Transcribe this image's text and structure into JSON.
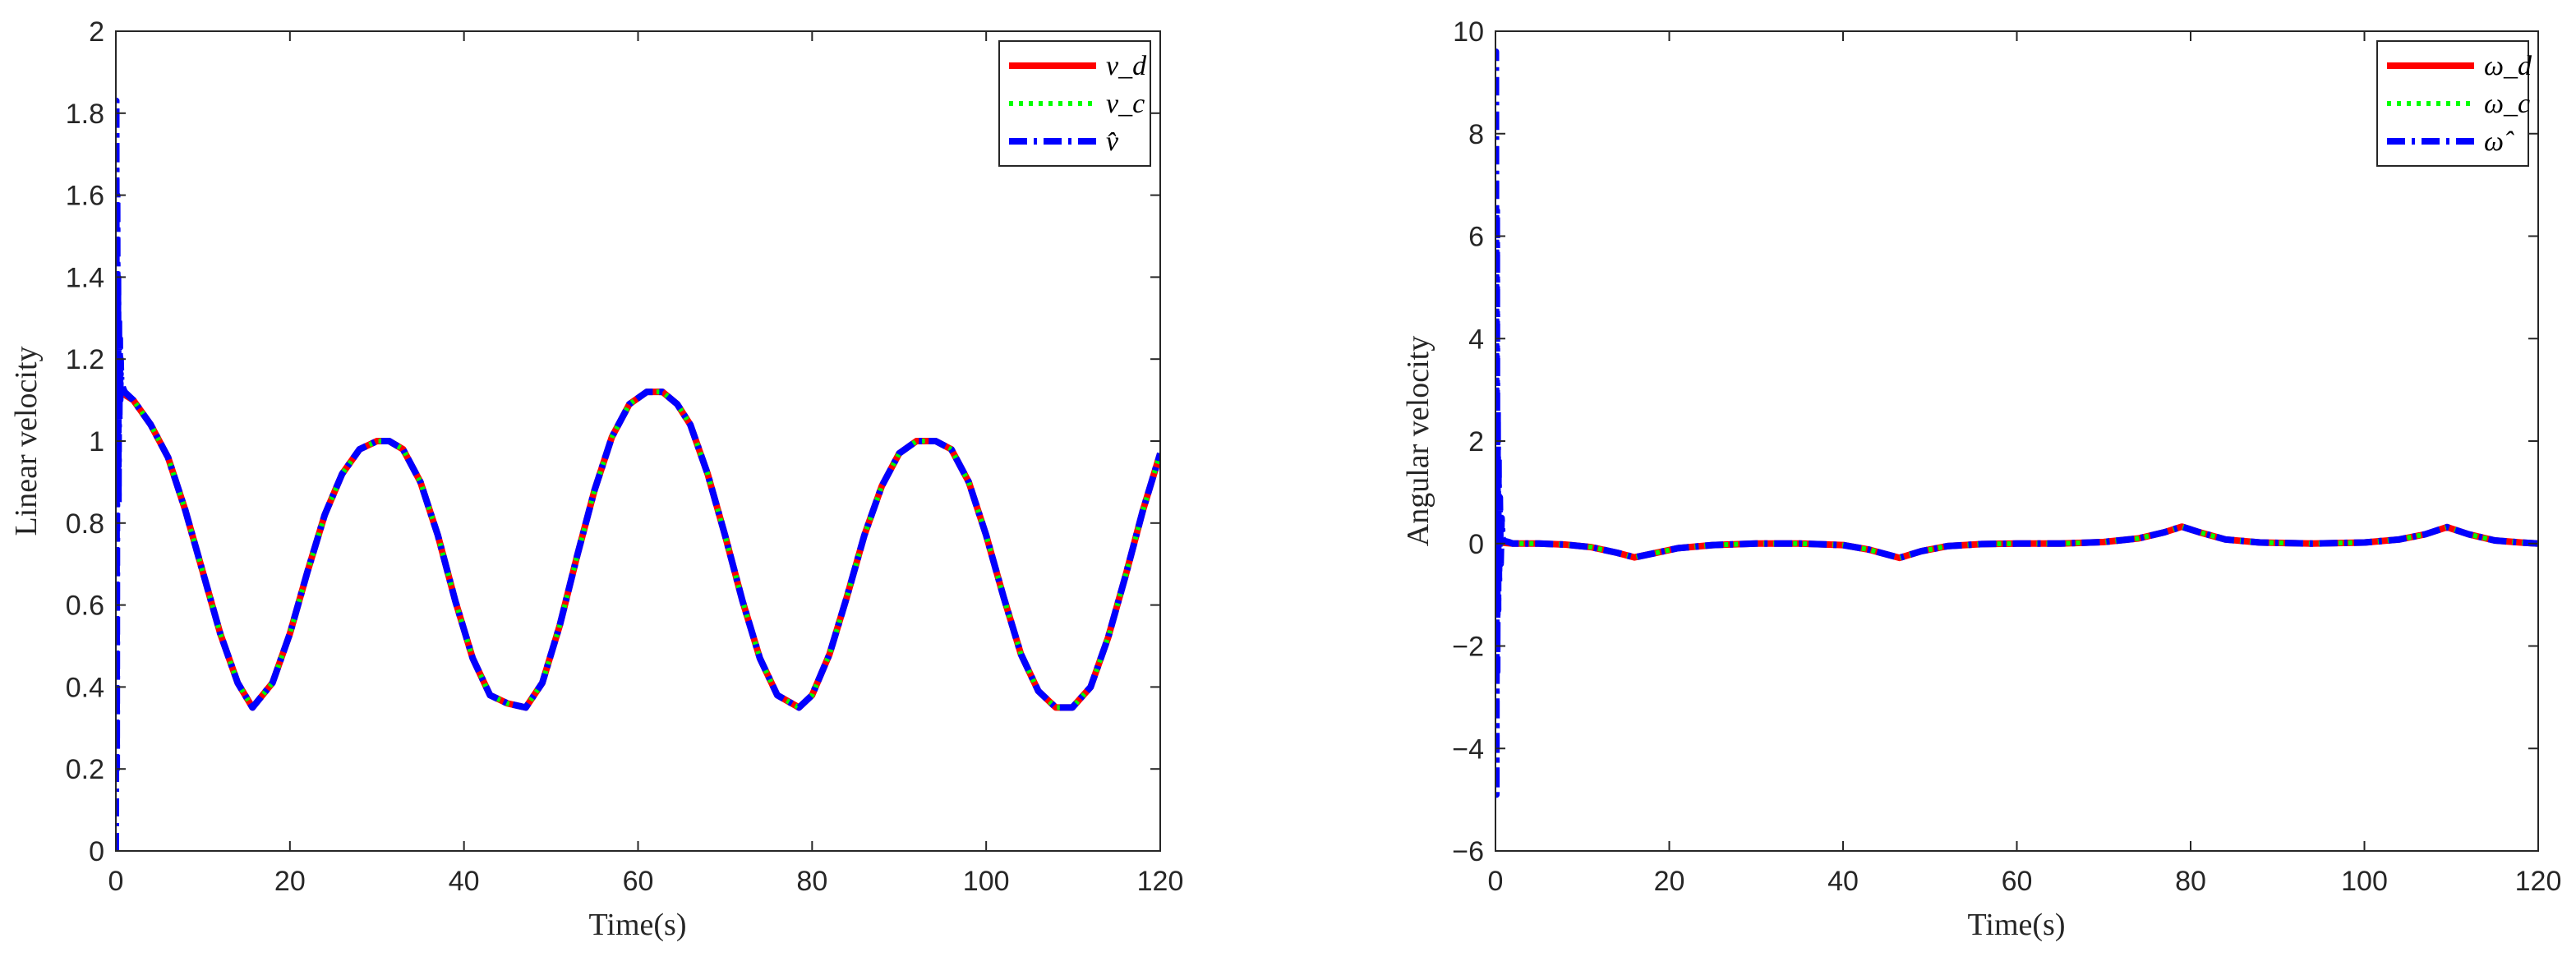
{
  "chart_data": [
    {
      "type": "line",
      "xlabel": "Time(s)",
      "ylabel": "Linear velocity",
      "xlim": [
        0,
        120
      ],
      "ylim": [
        0,
        2
      ],
      "xticks": [
        "0",
        "20",
        "40",
        "60",
        "80",
        "100",
        "120"
      ],
      "yticks": [
        "0",
        "0.2",
        "0.4",
        "0.6",
        "0.8",
        "1",
        "1.2",
        "1.4",
        "1.6",
        "1.8",
        "2"
      ],
      "legend_position": "top-right",
      "grid": false,
      "series": [
        {
          "name": "v_d",
          "color": "#ff0000",
          "style": "solid",
          "x": [
            0.5,
            2,
            4,
            6,
            8,
            10,
            12,
            14,
            15.7,
            18,
            20,
            22,
            24,
            26,
            28,
            30,
            31.4,
            33,
            35,
            37,
            39,
            41,
            43,
            45,
            47.1,
            49,
            51,
            53,
            55,
            57,
            59,
            61,
            62.8,
            64.5,
            66,
            68,
            70,
            72,
            74,
            76,
            78.5,
            80,
            82,
            84,
            86,
            88,
            90,
            92,
            94.2,
            96,
            98,
            100,
            102,
            104,
            106,
            108,
            109.9,
            112,
            114,
            116,
            118,
            120
          ],
          "y": [
            1.12,
            1.1,
            1.04,
            0.96,
            0.83,
            0.68,
            0.53,
            0.41,
            0.35,
            0.41,
            0.53,
            0.68,
            0.82,
            0.92,
            0.98,
            1.0,
            1.0,
            0.98,
            0.9,
            0.77,
            0.61,
            0.47,
            0.38,
            0.36,
            0.35,
            0.41,
            0.55,
            0.72,
            0.88,
            1.01,
            1.09,
            1.12,
            1.12,
            1.09,
            1.04,
            0.92,
            0.77,
            0.61,
            0.47,
            0.38,
            0.35,
            0.38,
            0.48,
            0.62,
            0.77,
            0.89,
            0.97,
            1.0,
            1.0,
            0.98,
            0.9,
            0.77,
            0.62,
            0.48,
            0.39,
            0.35,
            0.35,
            0.4,
            0.52,
            0.67,
            0.83,
            0.97
          ]
        },
        {
          "name": "v_c",
          "color": "#00ff00",
          "style": "dotted",
          "x": [
            0.5,
            2,
            4,
            6,
            8,
            10,
            12,
            14,
            15.7,
            18,
            20,
            22,
            24,
            26,
            28,
            30,
            31.4,
            33,
            35,
            37,
            39,
            41,
            43,
            45,
            47.1,
            49,
            51,
            53,
            55,
            57,
            59,
            61,
            62.8,
            64.5,
            66,
            68,
            70,
            72,
            74,
            76,
            78.5,
            80,
            82,
            84,
            86,
            88,
            90,
            92,
            94.2,
            96,
            98,
            100,
            102,
            104,
            106,
            108,
            109.9,
            112,
            114,
            116,
            118,
            120
          ],
          "y": [
            1.12,
            1.1,
            1.04,
            0.96,
            0.83,
            0.68,
            0.53,
            0.41,
            0.35,
            0.41,
            0.53,
            0.68,
            0.82,
            0.92,
            0.98,
            1.0,
            1.0,
            0.98,
            0.9,
            0.77,
            0.61,
            0.47,
            0.38,
            0.36,
            0.35,
            0.41,
            0.55,
            0.72,
            0.88,
            1.01,
            1.09,
            1.12,
            1.12,
            1.09,
            1.04,
            0.92,
            0.77,
            0.61,
            0.47,
            0.38,
            0.35,
            0.38,
            0.48,
            0.62,
            0.77,
            0.89,
            0.97,
            1.0,
            1.0,
            0.98,
            0.9,
            0.77,
            0.62,
            0.48,
            0.39,
            0.35,
            0.35,
            0.4,
            0.52,
            0.67,
            0.83,
            0.97
          ]
        },
        {
          "name": "v̂",
          "color": "#0000ff",
          "style": "dashdot",
          "x": [
            0,
            0.05,
            0.1,
            0.15,
            0.2,
            0.25,
            0.3,
            0.35,
            0.4,
            0.45,
            0.5,
            0.55,
            0.6,
            0.7,
            0.8,
            1,
            2,
            4,
            6,
            8,
            10,
            12,
            14,
            15.7,
            18,
            20,
            22,
            24,
            26,
            28,
            30,
            31.4,
            33,
            35,
            37,
            39,
            41,
            43,
            45,
            47.1,
            49,
            51,
            53,
            55,
            57,
            59,
            61,
            62.8,
            64.5,
            66,
            68,
            70,
            72,
            74,
            76,
            78.5,
            80,
            82,
            84,
            86,
            88,
            90,
            92,
            94.2,
            96,
            98,
            100,
            102,
            104,
            106,
            108,
            109.9,
            112,
            114,
            116,
            118,
            120
          ],
          "y": [
            0,
            1.83,
            0.2,
            1.6,
            0.9,
            1.4,
            0.85,
            1.3,
            1.05,
            1.25,
            1.1,
            1.2,
            1.15,
            1.14,
            1.13,
            1.12,
            1.1,
            1.04,
            0.96,
            0.83,
            0.68,
            0.53,
            0.41,
            0.35,
            0.41,
            0.53,
            0.68,
            0.82,
            0.92,
            0.98,
            1.0,
            1.0,
            0.98,
            0.9,
            0.77,
            0.61,
            0.47,
            0.38,
            0.36,
            0.35,
            0.41,
            0.55,
            0.72,
            0.88,
            1.01,
            1.09,
            1.12,
            1.12,
            1.09,
            1.04,
            0.92,
            0.77,
            0.61,
            0.47,
            0.38,
            0.35,
            0.38,
            0.48,
            0.62,
            0.77,
            0.89,
            0.97,
            1.0,
            1.0,
            0.98,
            0.9,
            0.77,
            0.62,
            0.48,
            0.39,
            0.35,
            0.35,
            0.4,
            0.52,
            0.67,
            0.83,
            0.97
          ]
        }
      ]
    },
    {
      "type": "line",
      "xlabel": "Time(s)",
      "ylabel": "Angular velocity",
      "xlim": [
        0,
        120
      ],
      "ylim": [
        -6,
        10
      ],
      "xticks": [
        "0",
        "20",
        "40",
        "60",
        "80",
        "100",
        "120"
      ],
      "yticks": [
        "−6",
        "−4",
        "−2",
        "0",
        "2",
        "4",
        "6",
        "8",
        "10"
      ],
      "legend_position": "top-right",
      "grid": false,
      "series": [
        {
          "name": "ω_d",
          "color": "#ff0000",
          "style": "solid",
          "x": [
            0.5,
            2,
            5,
            8,
            11,
            14,
            16,
            18,
            21,
            25,
            30,
            35,
            40,
            43,
            46.5,
            49,
            52,
            56,
            60,
            65,
            70,
            74,
            77,
            79,
            81,
            84,
            88,
            94,
            100,
            104,
            107,
            109.5,
            112,
            115,
            118,
            120
          ],
          "y": [
            0.02,
            0.0,
            0.0,
            -0.02,
            -0.07,
            -0.18,
            -0.27,
            -0.2,
            -0.09,
            -0.03,
            0.0,
            0.0,
            -0.03,
            -0.12,
            -0.28,
            -0.15,
            -0.05,
            -0.01,
            0.0,
            0.0,
            0.03,
            0.1,
            0.22,
            0.33,
            0.22,
            0.08,
            0.02,
            0.0,
            0.02,
            0.08,
            0.18,
            0.32,
            0.18,
            0.06,
            0.02,
            0.0
          ]
        },
        {
          "name": "ω_c",
          "color": "#00ff00",
          "style": "dotted",
          "x": [
            0.5,
            2,
            5,
            8,
            11,
            14,
            16,
            18,
            21,
            25,
            30,
            35,
            40,
            43,
            46.5,
            49,
            52,
            56,
            60,
            65,
            70,
            74,
            77,
            79,
            81,
            84,
            88,
            94,
            100,
            104,
            107,
            109.5,
            112,
            115,
            118,
            120
          ],
          "y": [
            0.02,
            0.0,
            0.0,
            -0.02,
            -0.07,
            -0.18,
            -0.27,
            -0.2,
            -0.09,
            -0.03,
            0.0,
            0.0,
            -0.03,
            -0.12,
            -0.28,
            -0.15,
            -0.05,
            -0.01,
            0.0,
            0.0,
            0.03,
            0.1,
            0.22,
            0.33,
            0.22,
            0.08,
            0.02,
            0.0,
            0.02,
            0.08,
            0.18,
            0.32,
            0.18,
            0.06,
            0.02,
            0.0
          ]
        },
        {
          "name": "ω̂",
          "color": "#0000ff",
          "style": "dashdot",
          "x": [
            0,
            0.05,
            0.1,
            0.15,
            0.2,
            0.25,
            0.3,
            0.35,
            0.4,
            0.5,
            0.6,
            0.7,
            0.8,
            1,
            1.5,
            2,
            5,
            8,
            11,
            14,
            16,
            18,
            21,
            25,
            30,
            35,
            40,
            43,
            46.5,
            49,
            52,
            56,
            60,
            65,
            70,
            74,
            77,
            79,
            81,
            84,
            88,
            94,
            100,
            104,
            107,
            109.5,
            112,
            115,
            118,
            120
          ],
          "y": [
            0,
            9.6,
            -4.9,
            6.5,
            -2.5,
            2.6,
            -1.3,
            1.7,
            -0.8,
            0.9,
            -0.4,
            0.5,
            0.1,
            0.05,
            0.03,
            0.0,
            0.0,
            -0.02,
            -0.07,
            -0.18,
            -0.27,
            -0.2,
            -0.09,
            -0.03,
            0.0,
            0.0,
            -0.03,
            -0.12,
            -0.28,
            -0.15,
            -0.05,
            -0.01,
            0.0,
            0.0,
            0.03,
            0.1,
            0.22,
            0.33,
            0.22,
            0.08,
            0.02,
            0.0,
            0.02,
            0.08,
            0.18,
            0.32,
            0.18,
            0.06,
            0.02,
            0.0
          ]
        }
      ]
    }
  ]
}
